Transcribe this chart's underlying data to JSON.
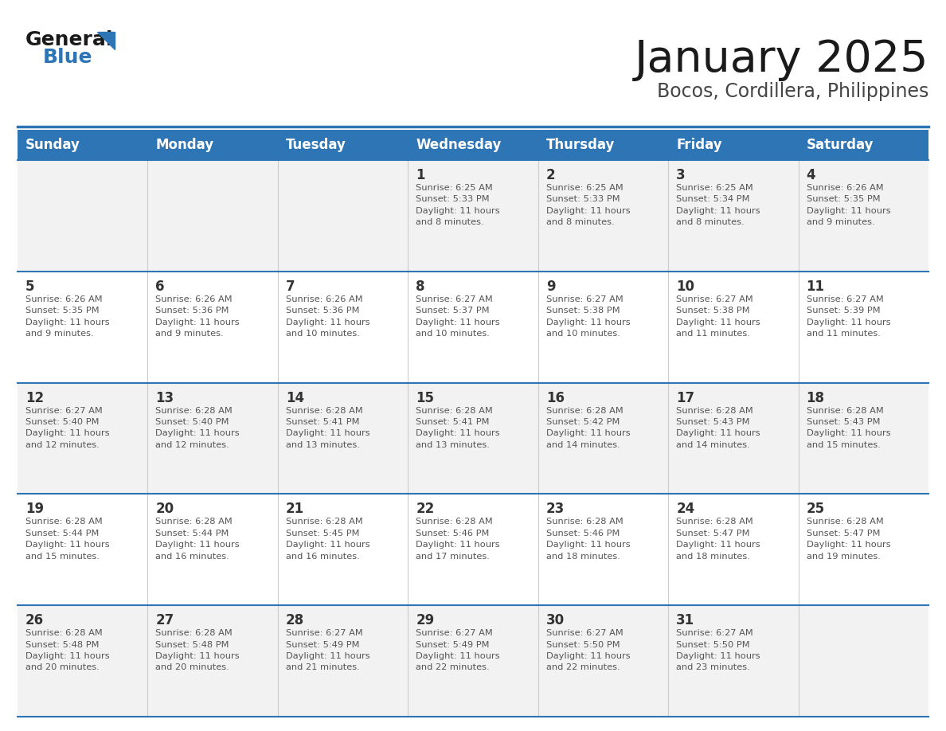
{
  "title": "January 2025",
  "subtitle": "Bocos, Cordillera, Philippines",
  "header_bg": "#2E75B6",
  "header_text": "#FFFFFF",
  "row_bg_odd": "#F2F2F2",
  "row_bg_even": "#FFFFFF",
  "separator_color": "#2E75B6",
  "text_color": "#444444",
  "day_number_color": "#333333",
  "weekdays": [
    "Sunday",
    "Monday",
    "Tuesday",
    "Wednesday",
    "Thursday",
    "Friday",
    "Saturday"
  ],
  "calendar": [
    [
      {
        "day": null,
        "sunrise": null,
        "sunset": null,
        "daylight": null
      },
      {
        "day": null,
        "sunrise": null,
        "sunset": null,
        "daylight": null
      },
      {
        "day": null,
        "sunrise": null,
        "sunset": null,
        "daylight": null
      },
      {
        "day": 1,
        "sunrise": "6:25 AM",
        "sunset": "5:33 PM",
        "daylight": "11 hours\nand 8 minutes."
      },
      {
        "day": 2,
        "sunrise": "6:25 AM",
        "sunset": "5:33 PM",
        "daylight": "11 hours\nand 8 minutes."
      },
      {
        "day": 3,
        "sunrise": "6:25 AM",
        "sunset": "5:34 PM",
        "daylight": "11 hours\nand 8 minutes."
      },
      {
        "day": 4,
        "sunrise": "6:26 AM",
        "sunset": "5:35 PM",
        "daylight": "11 hours\nand 9 minutes."
      }
    ],
    [
      {
        "day": 5,
        "sunrise": "6:26 AM",
        "sunset": "5:35 PM",
        "daylight": "11 hours\nand 9 minutes."
      },
      {
        "day": 6,
        "sunrise": "6:26 AM",
        "sunset": "5:36 PM",
        "daylight": "11 hours\nand 9 minutes."
      },
      {
        "day": 7,
        "sunrise": "6:26 AM",
        "sunset": "5:36 PM",
        "daylight": "11 hours\nand 10 minutes."
      },
      {
        "day": 8,
        "sunrise": "6:27 AM",
        "sunset": "5:37 PM",
        "daylight": "11 hours\nand 10 minutes."
      },
      {
        "day": 9,
        "sunrise": "6:27 AM",
        "sunset": "5:38 PM",
        "daylight": "11 hours\nand 10 minutes."
      },
      {
        "day": 10,
        "sunrise": "6:27 AM",
        "sunset": "5:38 PM",
        "daylight": "11 hours\nand 11 minutes."
      },
      {
        "day": 11,
        "sunrise": "6:27 AM",
        "sunset": "5:39 PM",
        "daylight": "11 hours\nand 11 minutes."
      }
    ],
    [
      {
        "day": 12,
        "sunrise": "6:27 AM",
        "sunset": "5:40 PM",
        "daylight": "11 hours\nand 12 minutes."
      },
      {
        "day": 13,
        "sunrise": "6:28 AM",
        "sunset": "5:40 PM",
        "daylight": "11 hours\nand 12 minutes."
      },
      {
        "day": 14,
        "sunrise": "6:28 AM",
        "sunset": "5:41 PM",
        "daylight": "11 hours\nand 13 minutes."
      },
      {
        "day": 15,
        "sunrise": "6:28 AM",
        "sunset": "5:41 PM",
        "daylight": "11 hours\nand 13 minutes."
      },
      {
        "day": 16,
        "sunrise": "6:28 AM",
        "sunset": "5:42 PM",
        "daylight": "11 hours\nand 14 minutes."
      },
      {
        "day": 17,
        "sunrise": "6:28 AM",
        "sunset": "5:43 PM",
        "daylight": "11 hours\nand 14 minutes."
      },
      {
        "day": 18,
        "sunrise": "6:28 AM",
        "sunset": "5:43 PM",
        "daylight": "11 hours\nand 15 minutes."
      }
    ],
    [
      {
        "day": 19,
        "sunrise": "6:28 AM",
        "sunset": "5:44 PM",
        "daylight": "11 hours\nand 15 minutes."
      },
      {
        "day": 20,
        "sunrise": "6:28 AM",
        "sunset": "5:44 PM",
        "daylight": "11 hours\nand 16 minutes."
      },
      {
        "day": 21,
        "sunrise": "6:28 AM",
        "sunset": "5:45 PM",
        "daylight": "11 hours\nand 16 minutes."
      },
      {
        "day": 22,
        "sunrise": "6:28 AM",
        "sunset": "5:46 PM",
        "daylight": "11 hours\nand 17 minutes."
      },
      {
        "day": 23,
        "sunrise": "6:28 AM",
        "sunset": "5:46 PM",
        "daylight": "11 hours\nand 18 minutes."
      },
      {
        "day": 24,
        "sunrise": "6:28 AM",
        "sunset": "5:47 PM",
        "daylight": "11 hours\nand 18 minutes."
      },
      {
        "day": 25,
        "sunrise": "6:28 AM",
        "sunset": "5:47 PM",
        "daylight": "11 hours\nand 19 minutes."
      }
    ],
    [
      {
        "day": 26,
        "sunrise": "6:28 AM",
        "sunset": "5:48 PM",
        "daylight": "11 hours\nand 20 minutes."
      },
      {
        "day": 27,
        "sunrise": "6:28 AM",
        "sunset": "5:48 PM",
        "daylight": "11 hours\nand 20 minutes."
      },
      {
        "day": 28,
        "sunrise": "6:27 AM",
        "sunset": "5:49 PM",
        "daylight": "11 hours\nand 21 minutes."
      },
      {
        "day": 29,
        "sunrise": "6:27 AM",
        "sunset": "5:49 PM",
        "daylight": "11 hours\nand 22 minutes."
      },
      {
        "day": 30,
        "sunrise": "6:27 AM",
        "sunset": "5:50 PM",
        "daylight": "11 hours\nand 22 minutes."
      },
      {
        "day": 31,
        "sunrise": "6:27 AM",
        "sunset": "5:50 PM",
        "daylight": "11 hours\nand 23 minutes."
      },
      {
        "day": null,
        "sunrise": null,
        "sunset": null,
        "daylight": null
      }
    ]
  ]
}
